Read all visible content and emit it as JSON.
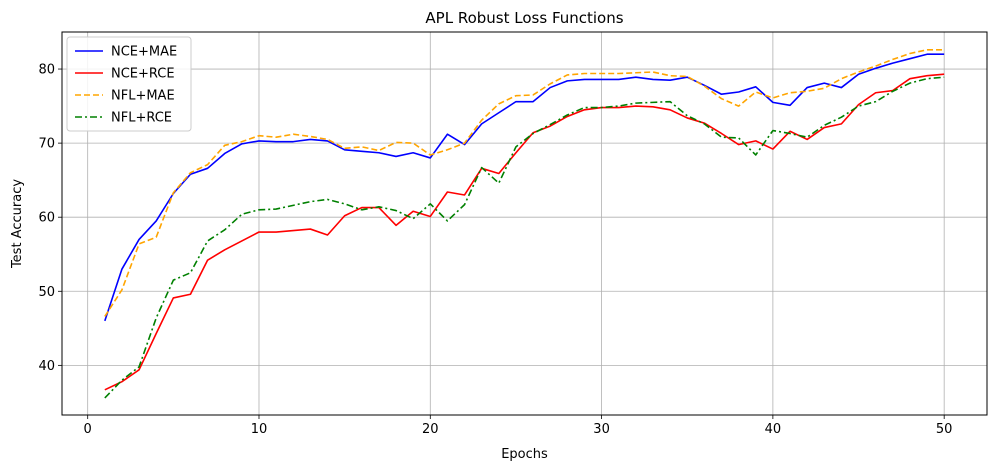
{
  "chart_data": {
    "type": "line",
    "title": "APL Robust Loss Functions",
    "xlabel": "Epochs",
    "ylabel": "Test Accuracy",
    "xlim": [
      -1.5,
      52.5
    ],
    "ylim": [
      33.3,
      85.0
    ],
    "xticks": [
      0,
      10,
      20,
      30,
      40,
      50
    ],
    "yticks": [
      40,
      50,
      60,
      70,
      80
    ],
    "grid": true,
    "legend_position": "top-left",
    "x": [
      1,
      2,
      3,
      4,
      5,
      6,
      7,
      8,
      9,
      10,
      11,
      12,
      13,
      14,
      15,
      16,
      17,
      18,
      19,
      20,
      21,
      22,
      23,
      24,
      25,
      26,
      27,
      28,
      29,
      30,
      31,
      32,
      33,
      34,
      35,
      36,
      37,
      38,
      39,
      40,
      41,
      42,
      43,
      44,
      45,
      46,
      47,
      48,
      49,
      50
    ],
    "series": [
      {
        "name": "NCE+MAE",
        "color": "#0000ff",
        "style": "solid",
        "values": [
          46.0,
          53.0,
          57.0,
          59.5,
          63.2,
          65.8,
          66.6,
          68.6,
          69.9,
          70.3,
          70.2,
          70.2,
          70.5,
          70.3,
          69.1,
          68.9,
          68.7,
          68.2,
          68.7,
          68.0,
          71.2,
          69.8,
          72.6,
          74.1,
          75.6,
          75.6,
          77.5,
          78.4,
          78.6,
          78.6,
          78.6,
          78.9,
          78.6,
          78.5,
          78.9,
          77.8,
          76.6,
          76.9,
          77.6,
          75.5,
          75.1,
          77.5,
          78.1,
          77.5,
          79.3,
          80.1,
          80.8,
          81.4,
          82.0,
          82.0
        ]
      },
      {
        "name": "NCE+RCE",
        "color": "#ff0000",
        "style": "solid",
        "values": [
          36.7,
          37.8,
          39.4,
          44.3,
          49.1,
          49.6,
          54.2,
          55.6,
          56.8,
          58.0,
          58.0,
          58.2,
          58.4,
          57.6,
          60.2,
          61.3,
          61.3,
          58.9,
          60.8,
          60.1,
          63.4,
          63.0,
          66.6,
          65.9,
          68.7,
          71.4,
          72.3,
          73.6,
          74.5,
          74.8,
          74.8,
          75.0,
          74.9,
          74.5,
          73.4,
          72.7,
          71.3,
          69.8,
          70.3,
          69.2,
          71.6,
          70.5,
          72.1,
          72.6,
          75.2,
          76.8,
          77.1,
          78.7,
          79.1,
          79.3
        ]
      },
      {
        "name": "NFL+MAE",
        "color": "#ffa500",
        "style": "dashed",
        "values": [
          46.6,
          50.2,
          56.4,
          57.3,
          63.3,
          66.0,
          67.1,
          69.7,
          70.2,
          71.0,
          70.8,
          71.2,
          70.9,
          70.5,
          69.3,
          69.5,
          69.0,
          70.1,
          70.0,
          68.4,
          69.1,
          70.0,
          73.1,
          75.3,
          76.4,
          76.5,
          78.0,
          79.2,
          79.4,
          79.4,
          79.4,
          79.5,
          79.6,
          79.1,
          79.0,
          77.7,
          76.0,
          75.0,
          76.9,
          76.1,
          76.8,
          77.0,
          77.4,
          78.7,
          79.6,
          80.4,
          81.3,
          82.1,
          82.6,
          82.6
        ]
      },
      {
        "name": "NFL+RCE",
        "color": "#008000",
        "style": "dashdot",
        "values": [
          35.6,
          38.0,
          39.8,
          46.4,
          51.5,
          52.5,
          56.8,
          58.3,
          60.4,
          61.0,
          61.1,
          61.6,
          62.1,
          62.4,
          61.8,
          61.0,
          61.4,
          60.9,
          59.8,
          61.8,
          59.5,
          61.7,
          66.7,
          64.6,
          69.5,
          71.3,
          72.5,
          73.8,
          74.8,
          74.8,
          75.0,
          75.4,
          75.5,
          75.6,
          73.7,
          72.6,
          70.8,
          70.7,
          68.4,
          71.7,
          71.3,
          70.8,
          72.4,
          73.5,
          75.0,
          75.6,
          77.0,
          78.1,
          78.7,
          78.9
        ]
      }
    ]
  }
}
